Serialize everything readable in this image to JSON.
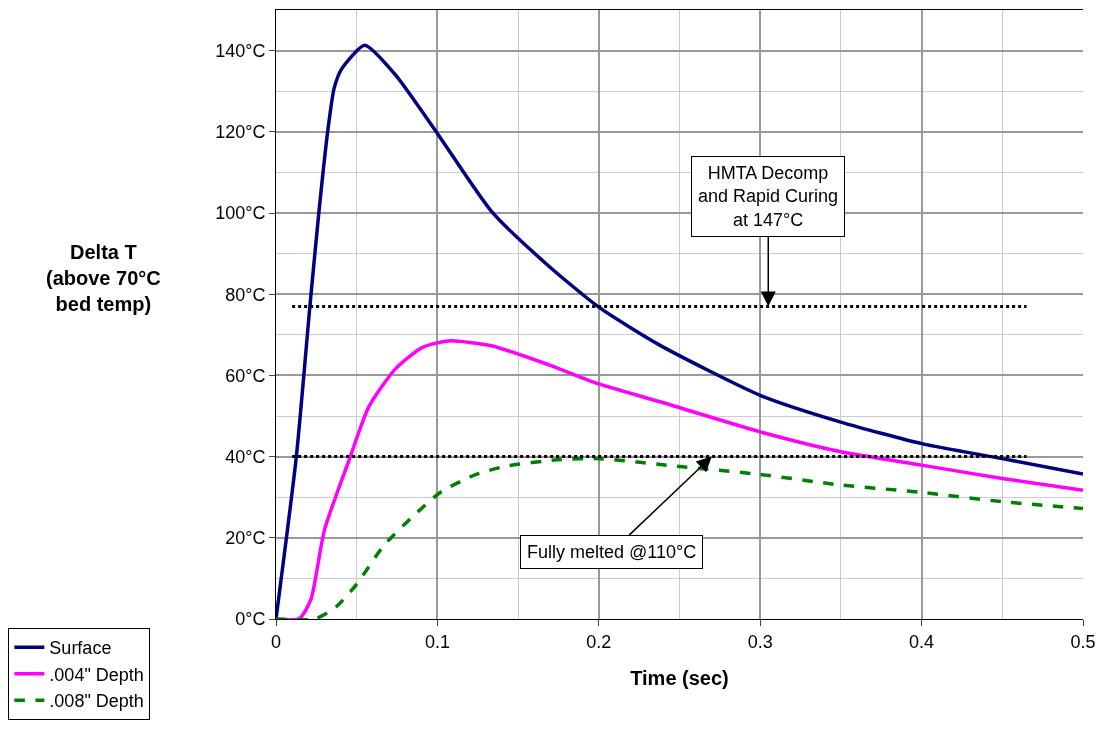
{
  "chart_data": {
    "type": "line",
    "xlabel": "Time (sec)",
    "ylabel": "Delta T\n(above 70°C\nbed temp)",
    "xlim": [
      0,
      0.5
    ],
    "xticks": [
      0,
      0.1,
      0.2,
      0.3,
      0.4,
      0.5
    ],
    "ylim": [
      0,
      150
    ],
    "yticks": [
      {
        "value": 0,
        "label": "0°C"
      },
      {
        "value": 20,
        "label": "20°C"
      },
      {
        "value": 40,
        "label": "40°C"
      },
      {
        "value": 60,
        "label": "60°C"
      },
      {
        "value": 80,
        "label": "80°C"
      },
      {
        "value": 100,
        "label": "100°C"
      },
      {
        "value": 120,
        "label": "120°C"
      },
      {
        "value": 140,
        "label": "140°C"
      }
    ],
    "grid": true,
    "legend": "bottom left",
    "marker": "none",
    "series": [
      {
        "name": "Surface",
        "color": "#000080",
        "line_style": "solid",
        "x": [
          0,
          0.0126,
          0.021,
          0.0264,
          0.032,
          0.036,
          0.0407,
          0.055,
          0.074,
          0.1003,
          0.1335,
          0.1668,
          0.2,
          0.238,
          0.3,
          0.35,
          0.4,
          0.45,
          0.5
        ],
        "values": [
          0,
          40,
          77,
          99.5,
          120,
          130.7,
          135.5,
          141.3,
          134,
          119.4,
          100.4,
          87.7,
          76.8,
          67.4,
          55.1,
          48.5,
          43.2,
          39.5,
          35.7
        ]
      },
      {
        "name": ".004\" Depth",
        "color": "#ff00ff",
        "line_style": "solid",
        "x": [
          0,
          0.0145,
          0.0217,
          0.03,
          0.0455,
          0.0574,
          0.074,
          0.0907,
          0.107,
          0.1335,
          0.169,
          0.2,
          0.238,
          0.3,
          0.35,
          0.4,
          0.45,
          0.5
        ],
        "values": [
          0,
          0.1,
          4.9,
          21.9,
          39.4,
          52.2,
          61.6,
          66.9,
          68.5,
          67.3,
          62.6,
          57.9,
          53.5,
          46.1,
          41.2,
          37.9,
          34.6,
          31.7
        ]
      },
      {
        "name": ".008\" Depth",
        "color": "#008000",
        "line_style": "dashed",
        "x": [
          0,
          0.024,
          0.037,
          0.05,
          0.067,
          0.086,
          0.1026,
          0.124,
          0.143,
          0.174,
          0.2,
          0.2466,
          0.3,
          0.35,
          0.4,
          0.45,
          0.5
        ],
        "values": [
          0,
          0,
          2.9,
          8.6,
          18.2,
          25.7,
          31.4,
          35.6,
          37.7,
          39.2,
          39.5,
          37.7,
          35.6,
          33,
          31.2,
          28.9,
          27.2
        ]
      }
    ],
    "ref_lines": [
      {
        "axis": "y",
        "value": 77,
        "color": "#000000",
        "line_style": "dotted"
      },
      {
        "axis": "y",
        "value": 40,
        "color": "#000000",
        "line_style": "dotted"
      }
    ],
    "annotations": [
      {
        "text": "HMTA Decomp\nand Rapid Curing\nat 147°C",
        "x": 0.305,
        "y": 77
      },
      {
        "text": "Fully melted @110°C",
        "x": 0.27,
        "y": 40
      }
    ]
  }
}
